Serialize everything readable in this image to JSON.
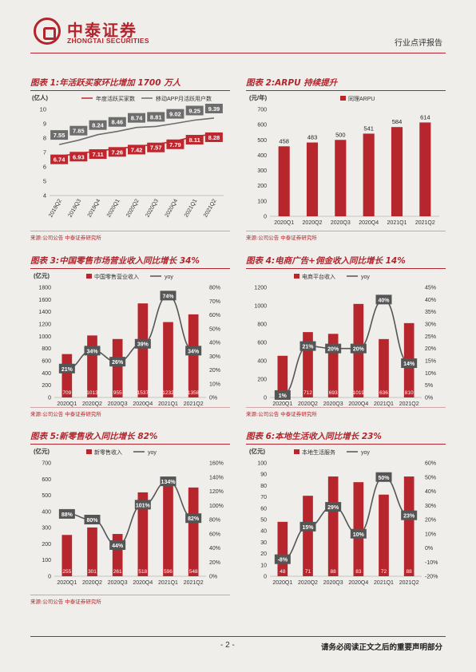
{
  "header": {
    "logo_cn": "中泰证券",
    "logo_en": "ZHONGTAI SECURITIES",
    "report_type": "行业点评报告"
  },
  "footer": {
    "page": "- 2 -",
    "disclaimer": "请务必阅读正文之后的重要声明部分"
  },
  "panels": [
    {
      "title": "图表 1:年活跃买家环比增加 1700 万人",
      "source": "来源:公司公告 中泰证券研究所"
    },
    {
      "title": "图表 2:ARPU 持续提升",
      "source": "来源:公司公告 中泰证券研究所"
    },
    {
      "title": "图表 3:中国零售市场营业收入同比增长 34%",
      "source": "来源:公司公告 中泰证券研究所"
    },
    {
      "title": "图表 4:电商广告+佣金收入同比增长 14%",
      "source": "来源:公司公告 中泰证券研究所"
    },
    {
      "title": "图表 5:新零售收入同比增长 82%",
      "source": "来源:公司公告 中泰证券研究所"
    },
    {
      "title": "图表 6:本地生活收入同比增长 23%",
      "source": "来源:公司公告 中泰证券研究所"
    }
  ],
  "chart_data": [
    {
      "type": "line",
      "unit": "(亿人)",
      "categories": [
        "2019Q2",
        "2019Q3",
        "2019Q4",
        "2020Q1",
        "2020Q2",
        "2020Q3",
        "2020Q4",
        "2021Q1",
        "2021Q2"
      ],
      "series": [
        {
          "name": "年度活跃买家数",
          "values": [
            6.74,
            6.93,
            7.11,
            7.26,
            7.42,
            7.57,
            7.79,
            8.11,
            8.28
          ],
          "color": "#c0262e"
        },
        {
          "name": "移动APP月活跃用户数",
          "values": [
            7.55,
            7.85,
            8.24,
            8.46,
            8.74,
            8.81,
            9.02,
            9.25,
            9.39
          ],
          "color": "#6d6d6d"
        }
      ],
      "ylim": [
        4,
        10
      ],
      "yticks": [
        4,
        5,
        6,
        7,
        8,
        9,
        10
      ]
    },
    {
      "type": "bar",
      "unit": "(元/年)",
      "categories": [
        "2020Q1",
        "2020Q2",
        "2020Q3",
        "2020Q4",
        "2021Q1",
        "2021Q2"
      ],
      "series": [
        {
          "name": "同理ARPU",
          "values": [
            458,
            483,
            500,
            541,
            584,
            614
          ],
          "color": "#b8262d"
        }
      ],
      "ylim": [
        0,
        700
      ],
      "yticks": [
        0,
        100,
        200,
        300,
        400,
        500,
        600,
        700
      ]
    },
    {
      "type": "bar",
      "unit": "(亿元)",
      "categories": [
        "2020Q1",
        "2020Q2",
        "2020Q3",
        "2020Q4",
        "2021Q1",
        "2021Q2"
      ],
      "series": [
        {
          "name": "中国零售营业收入",
          "values": [
            709,
            1013,
            955,
            1537,
            1232,
            1358
          ],
          "color": "#b8262d"
        },
        {
          "name": "yoy",
          "values": [
            21,
            34,
            26,
            39,
            74,
            34
          ],
          "color": "#555555"
        }
      ],
      "ylim": [
        0,
        1800
      ],
      "yticks": [
        0,
        200,
        400,
        600,
        800,
        1000,
        1200,
        1400,
        1600,
        1800
      ],
      "y2lim": [
        0,
        80
      ],
      "y2ticks": [
        0,
        10,
        20,
        30,
        40,
        50,
        60,
        70,
        80
      ]
    },
    {
      "type": "bar",
      "unit": "",
      "categories": [
        "2020Q1",
        "2020Q2",
        "2020Q3",
        "2020Q4",
        "2021Q1",
        "2021Q2"
      ],
      "series": [
        {
          "name": "电商平台收入",
          "values": [
            454,
            712,
            693,
            1019,
            636,
            810
          ],
          "color": "#b8262d"
        },
        {
          "name": "yoy",
          "values": [
            1,
            21,
            20,
            20,
            40,
            14
          ],
          "color": "#555555"
        }
      ],
      "ylim": [
        0,
        1200
      ],
      "yticks": [
        0,
        200,
        400,
        600,
        800,
        1000,
        1200
      ],
      "y2lim": [
        0,
        45
      ],
      "y2ticks": [
        0,
        5,
        10,
        15,
        20,
        25,
        30,
        35,
        40,
        45
      ]
    },
    {
      "type": "bar",
      "unit": "(亿元)",
      "categories": [
        "2020Q1",
        "2020Q2",
        "2020Q3",
        "2020Q4",
        "2021Q1",
        "2021Q2"
      ],
      "series": [
        {
          "name": "新零售收入",
          "values": [
            255,
            301,
            261,
            518,
            596,
            548
          ],
          "color": "#b8262d"
        },
        {
          "name": "yoy",
          "values": [
            88,
            80,
            44,
            101,
            134,
            82
          ],
          "color": "#555555"
        }
      ],
      "ylim": [
        0,
        700
      ],
      "yticks": [
        0,
        100,
        200,
        300,
        400,
        500,
        600,
        700
      ],
      "y2lim": [
        0,
        160
      ],
      "y2ticks": [
        0,
        20,
        40,
        60,
        80,
        100,
        120,
        140,
        160
      ]
    },
    {
      "type": "bar",
      "unit": "(亿元)",
      "categories": [
        "2020Q1",
        "2020Q2",
        "2020Q3",
        "2020Q4",
        "2021Q1",
        "2021Q2"
      ],
      "series": [
        {
          "name": "本地生活服务",
          "values": [
            48,
            71,
            88,
            83,
            72,
            88
          ],
          "color": "#b8262d"
        },
        {
          "name": "yoy",
          "values": [
            -8,
            15,
            29,
            10,
            50,
            23
          ],
          "color": "#555555"
        }
      ],
      "ylim": [
        0,
        100
      ],
      "yticks": [
        0,
        10,
        20,
        30,
        40,
        50,
        60,
        70,
        80,
        90,
        100
      ],
      "y2lim": [
        -20,
        60
      ],
      "y2ticks": [
        -20,
        -10,
        0,
        10,
        20,
        30,
        40,
        50,
        60
      ]
    }
  ]
}
